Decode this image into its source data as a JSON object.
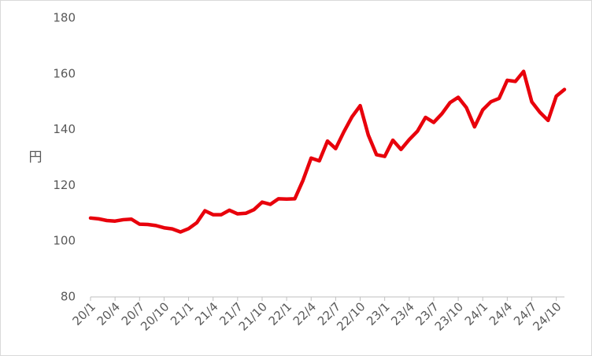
{
  "chart_data": {
    "type": "line",
    "ylabel": "円",
    "categories": [
      "20/1",
      null,
      null,
      "20/4",
      null,
      null,
      "20/7",
      null,
      null,
      "20/10",
      null,
      null,
      "21/1",
      null,
      null,
      "21/4",
      null,
      null,
      "21/7",
      null,
      null,
      "21/10",
      null,
      null,
      "22/1",
      null,
      null,
      "22/4",
      null,
      null,
      "22/7",
      null,
      null,
      "22/10",
      null,
      null,
      "23/1",
      null,
      null,
      "23/4",
      null,
      null,
      "23/7",
      null,
      null,
      "23/10",
      null,
      null,
      "24/1",
      null,
      null,
      "24/4",
      null,
      null,
      "24/7",
      null,
      null,
      "24/10",
      null
    ],
    "values": [
      108.3,
      108.0,
      107.4,
      107.2,
      107.7,
      107.9,
      106.1,
      106.0,
      105.6,
      104.8,
      104.4,
      103.3,
      104.5,
      106.6,
      110.9,
      109.5,
      109.5,
      111.1,
      109.8,
      110.0,
      111.3,
      114.0,
      113.2,
      115.2,
      115.1,
      115.2,
      121.8,
      129.8,
      128.8,
      135.9,
      133.2,
      139.2,
      144.6,
      148.6,
      138.0,
      131.0,
      130.4,
      136.2,
      132.9,
      136.4,
      139.4,
      144.4,
      142.6,
      145.7,
      149.7,
      151.6,
      147.9,
      141.0,
      147.1,
      150.0,
      151.2,
      157.7,
      157.3,
      160.9,
      150.0,
      146.2,
      143.3,
      152.0,
      154.4
    ],
    "color": "#e8000b",
    "ylim": [
      80,
      180
    ],
    "yticks": [
      80,
      100,
      120,
      140,
      160,
      180
    ],
    "grid": false
  }
}
